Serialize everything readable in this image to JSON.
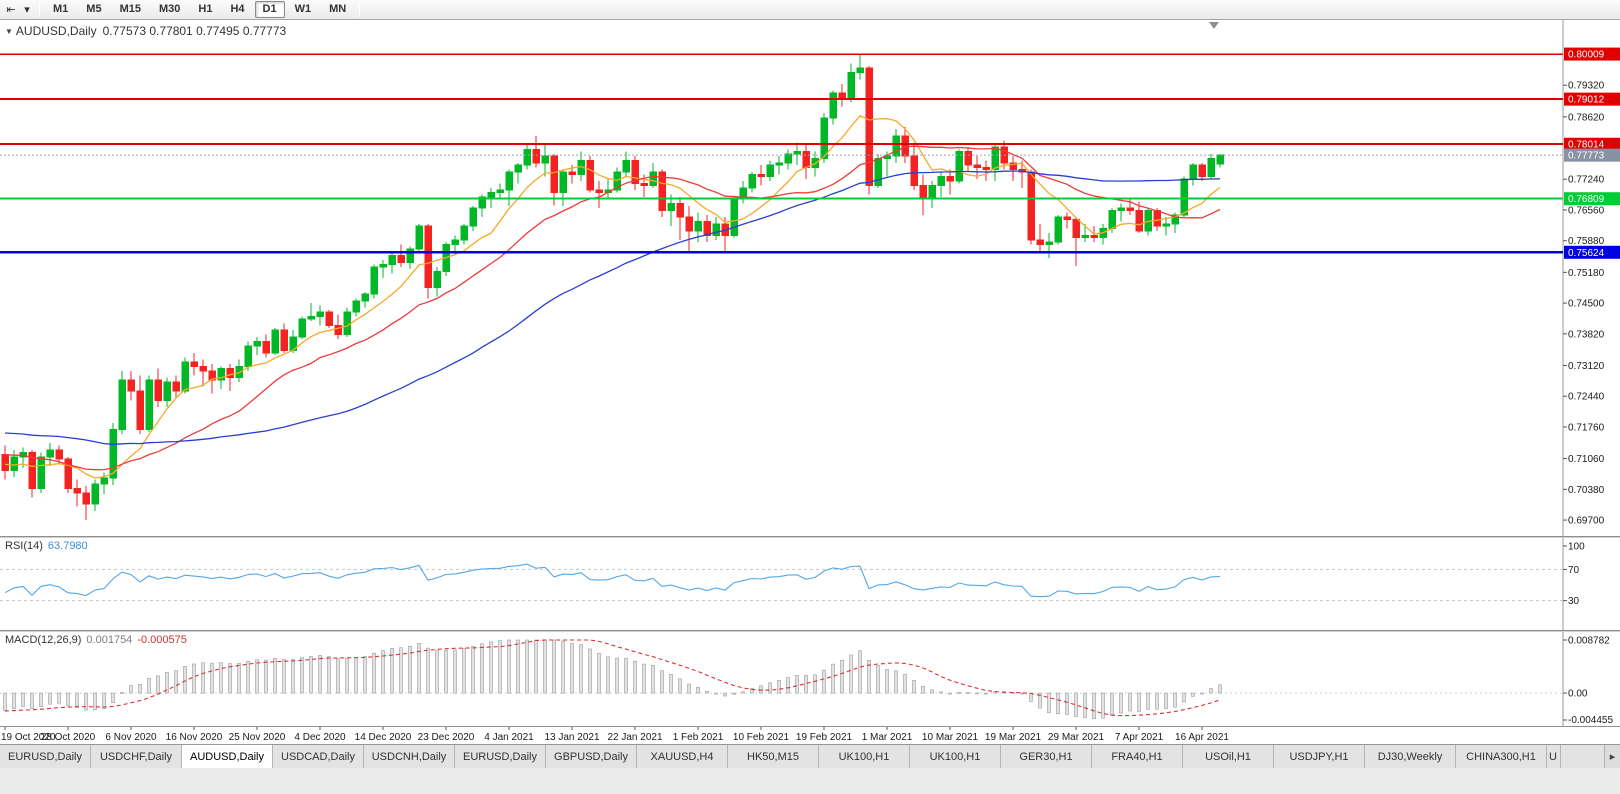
{
  "toolbar": {
    "timeframes": [
      "M1",
      "M5",
      "M15",
      "M30",
      "H1",
      "H4",
      "D1",
      "W1",
      "MN"
    ],
    "active_timeframe": "D1"
  },
  "icons": {
    "scroll_left": "⇤",
    "caret": "▾",
    "collapse_triangle": "▼",
    "tab_scroll_right": "▸"
  },
  "colors": {
    "up": "#00b826",
    "down": "#f52222",
    "rsi": "#52a8e8",
    "macd_signal": "#e03030",
    "macd_hist_fill": "#e2e2e2",
    "macd_hist_stroke": "#9c9c9c",
    "current_price_box": "#8792a5",
    "current_price_line": "#9aa2b8",
    "scale_text": "#1a1a1a"
  },
  "chart_data": {
    "type": "candlestick",
    "title_symbol": "AUDUSD,Daily",
    "open_text": "0.77573",
    "high_text": "0.77801",
    "low_text": "0.77495",
    "close_text": "0.77773",
    "current_price": 0.77773,
    "ylim": [
      0.6948,
      0.8063
    ],
    "price_ticks": [
      "0.79320",
      "0.78620",
      "0.77240",
      "0.76560",
      "0.75880",
      "0.75180",
      "0.74500",
      "0.73820",
      "0.73120",
      "0.72440",
      "0.71760",
      "0.71060",
      "0.70380",
      "0.69700"
    ],
    "levels": [
      {
        "price": 0.80009,
        "label": "0.80009",
        "color": "#e00000",
        "width": 1.4
      },
      {
        "price": 0.79012,
        "label": "0.79012",
        "color": "#e00000",
        "width": 2
      },
      {
        "price": 0.78014,
        "label": "0.78014",
        "color": "#e00000",
        "width": 2
      },
      {
        "price": 0.76809,
        "label": "0.76809",
        "color": "#00cc33",
        "width": 2
      },
      {
        "price": 0.75624,
        "label": "0.75624",
        "color": "#0000e6",
        "width": 2.4
      }
    ],
    "date_labels": [
      "19 Oct 2020",
      "28 Oct 2020",
      "6 Nov 2020",
      "16 Nov 2020",
      "25 Nov 2020",
      "4 Dec 2020",
      "14 Dec 2020",
      "23 Dec 2020",
      "4 Jan 2021",
      "13 Jan 2021",
      "22 Jan 2021",
      "1 Feb 2021",
      "10 Feb 2021",
      "19 Feb 2021",
      "1 Mar 2021",
      "10 Mar 2021",
      "19 Mar 2021",
      "29 Mar 2021",
      "7 Apr 2021",
      "16 Apr 2021"
    ],
    "label_every": 7,
    "moving_averages": [
      {
        "period": 8,
        "color": "#f7a928"
      },
      {
        "period": 20,
        "color": "#ef3a3a"
      },
      {
        "period": 50,
        "color": "#2840d0"
      }
    ],
    "rsi_label": "RSI(14)",
    "rsi_value": "63.7980",
    "rsi_period": 14,
    "rsi_scale": [
      "100",
      "70",
      "30"
    ],
    "macd_label": "MACD(12,26,9)",
    "macd_value": "0.001754",
    "macd_signal_value": "-0.000575",
    "macd_fast": 12,
    "macd_slow": 26,
    "macd_signal_period": 9,
    "macd_scale_max": "0.008782",
    "macd_scale_zero": "0.00",
    "macd_scale_min": "-0.004455",
    "seed_closes": [
      0.725,
      0.726,
      0.7245,
      0.723,
      0.721,
      0.7195,
      0.718,
      0.72,
      0.7215,
      0.723,
      0.724,
      0.7225,
      0.72,
      0.7175,
      0.7155,
      0.717,
      0.7185,
      0.72,
      0.723,
      0.721,
      0.7165,
      0.714,
      0.712,
      0.7145,
      0.716,
      0.7175,
      0.719,
      0.7165,
      0.7135,
      0.71,
      0.7075,
      0.706,
      0.709,
      0.712,
      0.7105,
      0.708,
      0.7095,
      0.711,
      0.7085,
      0.707
    ],
    "ohlc": [
      [
        0.7115,
        0.7135,
        0.706,
        0.708
      ],
      [
        0.708,
        0.7125,
        0.7065,
        0.711
      ],
      [
        0.711,
        0.713,
        0.7085,
        0.712
      ],
      [
        0.712,
        0.7125,
        0.702,
        0.704
      ],
      [
        0.704,
        0.712,
        0.703,
        0.711
      ],
      [
        0.711,
        0.714,
        0.709,
        0.7125
      ],
      [
        0.7125,
        0.7135,
        0.7095,
        0.7105
      ],
      [
        0.7105,
        0.711,
        0.703,
        0.704
      ],
      [
        0.704,
        0.706,
        0.7,
        0.703
      ],
      [
        0.703,
        0.7045,
        0.697,
        0.7005
      ],
      [
        0.7005,
        0.706,
        0.699,
        0.705
      ],
      [
        0.705,
        0.7075,
        0.7028,
        0.7063
      ],
      [
        0.7063,
        0.7185,
        0.7048,
        0.717
      ],
      [
        0.717,
        0.73,
        0.716,
        0.728
      ],
      [
        0.728,
        0.73,
        0.7235,
        0.7255
      ],
      [
        0.7255,
        0.729,
        0.716,
        0.717
      ],
      [
        0.717,
        0.729,
        0.7165,
        0.728
      ],
      [
        0.728,
        0.7305,
        0.722,
        0.7235
      ],
      [
        0.7235,
        0.7285,
        0.722,
        0.7275
      ],
      [
        0.7275,
        0.729,
        0.724,
        0.7255
      ],
      [
        0.7255,
        0.733,
        0.725,
        0.732
      ],
      [
        0.732,
        0.734,
        0.729,
        0.731
      ],
      [
        0.731,
        0.7325,
        0.7265,
        0.73
      ],
      [
        0.73,
        0.7315,
        0.725,
        0.728
      ],
      [
        0.728,
        0.731,
        0.726,
        0.7305
      ],
      [
        0.7305,
        0.7315,
        0.7255,
        0.7285
      ],
      [
        0.7285,
        0.7325,
        0.7275,
        0.731
      ],
      [
        0.731,
        0.7365,
        0.73,
        0.7355
      ],
      [
        0.7355,
        0.7375,
        0.7335,
        0.7365
      ],
      [
        0.7365,
        0.738,
        0.733,
        0.734
      ],
      [
        0.734,
        0.7395,
        0.7335,
        0.739
      ],
      [
        0.739,
        0.7405,
        0.734,
        0.7345
      ],
      [
        0.7345,
        0.739,
        0.734,
        0.7375
      ],
      [
        0.7375,
        0.742,
        0.737,
        0.7415
      ],
      [
        0.7415,
        0.745,
        0.741,
        0.742
      ],
      [
        0.742,
        0.7445,
        0.74,
        0.743
      ],
      [
        0.743,
        0.7435,
        0.7395,
        0.74
      ],
      [
        0.74,
        0.7425,
        0.737,
        0.738
      ],
      [
        0.738,
        0.744,
        0.7375,
        0.743
      ],
      [
        0.743,
        0.746,
        0.742,
        0.7455
      ],
      [
        0.7455,
        0.7475,
        0.744,
        0.747
      ],
      [
        0.747,
        0.7535,
        0.746,
        0.753
      ],
      [
        0.753,
        0.7545,
        0.7505,
        0.7535
      ],
      [
        0.7535,
        0.756,
        0.7515,
        0.7555
      ],
      [
        0.7555,
        0.758,
        0.753,
        0.754
      ],
      [
        0.754,
        0.7575,
        0.7525,
        0.757
      ],
      [
        0.757,
        0.7625,
        0.756,
        0.762
      ],
      [
        0.762,
        0.7625,
        0.746,
        0.7485
      ],
      [
        0.7485,
        0.753,
        0.7465,
        0.752
      ],
      [
        0.752,
        0.7585,
        0.751,
        0.758
      ],
      [
        0.758,
        0.76,
        0.7555,
        0.759
      ],
      [
        0.759,
        0.7625,
        0.758,
        0.762
      ],
      [
        0.762,
        0.7665,
        0.761,
        0.766
      ],
      [
        0.766,
        0.769,
        0.764,
        0.7685
      ],
      [
        0.7685,
        0.7705,
        0.766,
        0.7695
      ],
      [
        0.7695,
        0.7715,
        0.768,
        0.77
      ],
      [
        0.77,
        0.7745,
        0.7665,
        0.774
      ],
      [
        0.774,
        0.776,
        0.7715,
        0.7755
      ],
      [
        0.7755,
        0.78,
        0.7745,
        0.779
      ],
      [
        0.779,
        0.782,
        0.775,
        0.776
      ],
      [
        0.776,
        0.78,
        0.773,
        0.7775
      ],
      [
        0.7775,
        0.778,
        0.7666,
        0.7695
      ],
      [
        0.7695,
        0.7745,
        0.7665,
        0.774
      ],
      [
        0.774,
        0.7755,
        0.7715,
        0.7735
      ],
      [
        0.7735,
        0.7785,
        0.772,
        0.7765
      ],
      [
        0.7765,
        0.7775,
        0.7695,
        0.77
      ],
      [
        0.77,
        0.772,
        0.766,
        0.7695
      ],
      [
        0.7695,
        0.7725,
        0.768,
        0.77
      ],
      [
        0.77,
        0.775,
        0.7695,
        0.774
      ],
      [
        0.774,
        0.7785,
        0.773,
        0.7765
      ],
      [
        0.7765,
        0.7775,
        0.77,
        0.7715
      ],
      [
        0.7715,
        0.7735,
        0.7685,
        0.771
      ],
      [
        0.771,
        0.776,
        0.7705,
        0.774
      ],
      [
        0.774,
        0.7745,
        0.764,
        0.7655
      ],
      [
        0.7655,
        0.769,
        0.762,
        0.767
      ],
      [
        0.767,
        0.7685,
        0.759,
        0.764
      ],
      [
        0.764,
        0.7665,
        0.7565,
        0.761
      ],
      [
        0.761,
        0.765,
        0.7585,
        0.763
      ],
      [
        0.763,
        0.7645,
        0.7585,
        0.76
      ],
      [
        0.76,
        0.764,
        0.759,
        0.7625
      ],
      [
        0.7625,
        0.764,
        0.756,
        0.76
      ],
      [
        0.76,
        0.7685,
        0.7595,
        0.768
      ],
      [
        0.768,
        0.772,
        0.767,
        0.7705
      ],
      [
        0.7705,
        0.774,
        0.7695,
        0.7735
      ],
      [
        0.7735,
        0.7755,
        0.771,
        0.773
      ],
      [
        0.773,
        0.7765,
        0.772,
        0.7755
      ],
      [
        0.7755,
        0.7775,
        0.7735,
        0.776
      ],
      [
        0.776,
        0.779,
        0.7745,
        0.778
      ],
      [
        0.778,
        0.7805,
        0.7755,
        0.7785
      ],
      [
        0.7785,
        0.78,
        0.7725,
        0.775
      ],
      [
        0.775,
        0.7785,
        0.773,
        0.777
      ],
      [
        0.777,
        0.787,
        0.776,
        0.786
      ],
      [
        0.786,
        0.792,
        0.7845,
        0.7915
      ],
      [
        0.7915,
        0.7935,
        0.7885,
        0.7905
      ],
      [
        0.7905,
        0.798,
        0.7895,
        0.796
      ],
      [
        0.796,
        0.8001,
        0.7945,
        0.797
      ],
      [
        0.797,
        0.7975,
        0.769,
        0.771
      ],
      [
        0.771,
        0.778,
        0.7705,
        0.777
      ],
      [
        0.777,
        0.7785,
        0.773,
        0.7775
      ],
      [
        0.7775,
        0.7835,
        0.776,
        0.782
      ],
      [
        0.782,
        0.784,
        0.776,
        0.7775
      ],
      [
        0.7775,
        0.7805,
        0.77,
        0.771
      ],
      [
        0.771,
        0.7735,
        0.7645,
        0.7685
      ],
      [
        0.7685,
        0.772,
        0.766,
        0.771
      ],
      [
        0.771,
        0.774,
        0.7685,
        0.773
      ],
      [
        0.773,
        0.7745,
        0.769,
        0.772
      ],
      [
        0.772,
        0.779,
        0.7715,
        0.7785
      ],
      [
        0.7785,
        0.7795,
        0.774,
        0.7755
      ],
      [
        0.7755,
        0.7775,
        0.7725,
        0.775
      ],
      [
        0.775,
        0.7765,
        0.772,
        0.7745
      ],
      [
        0.7745,
        0.78,
        0.772,
        0.7795
      ],
      [
        0.7795,
        0.781,
        0.7745,
        0.776
      ],
      [
        0.776,
        0.7775,
        0.772,
        0.7745
      ],
      [
        0.7745,
        0.7765,
        0.7705,
        0.774
      ],
      [
        0.774,
        0.7745,
        0.758,
        0.759
      ],
      [
        0.759,
        0.7625,
        0.756,
        0.758
      ],
      [
        0.758,
        0.7605,
        0.755,
        0.7585
      ],
      [
        0.7585,
        0.7645,
        0.758,
        0.764
      ],
      [
        0.764,
        0.765,
        0.7615,
        0.7635
      ],
      [
        0.7635,
        0.764,
        0.7532,
        0.7595
      ],
      [
        0.7595,
        0.7625,
        0.7585,
        0.76
      ],
      [
        0.76,
        0.762,
        0.7585,
        0.7595
      ],
      [
        0.7595,
        0.7625,
        0.758,
        0.7615
      ],
      [
        0.7615,
        0.766,
        0.7605,
        0.7655
      ],
      [
        0.7655,
        0.767,
        0.763,
        0.766
      ],
      [
        0.766,
        0.768,
        0.7645,
        0.7655
      ],
      [
        0.7655,
        0.7675,
        0.7605,
        0.761
      ],
      [
        0.761,
        0.766,
        0.76,
        0.7655
      ],
      [
        0.7655,
        0.766,
        0.761,
        0.762
      ],
      [
        0.762,
        0.764,
        0.76,
        0.7625
      ],
      [
        0.7625,
        0.765,
        0.7605,
        0.7645
      ],
      [
        0.7645,
        0.773,
        0.764,
        0.7725
      ],
      [
        0.7725,
        0.776,
        0.771,
        0.7755
      ],
      [
        0.7755,
        0.776,
        0.772,
        0.773
      ],
      [
        0.773,
        0.778,
        0.7725,
        0.777
      ],
      [
        0.77573,
        0.77801,
        0.77495,
        0.77773
      ]
    ]
  },
  "tabs": {
    "items": [
      "EURUSD,Daily",
      "USDCHF,Daily",
      "AUDUSD,Daily",
      "USDCAD,Daily",
      "USDCNH,Daily",
      "EURUSD,Daily",
      "GBPUSD,Daily",
      "XAUUSD,H4",
      "HK50,M15",
      "UK100,H1",
      "UK100,H1",
      "GER30,H1",
      "FRA40,H1",
      "USOil,H1",
      "USDJPY,H1",
      "DJ30,Weekly",
      "CHINA300,H1"
    ],
    "active_index": 2,
    "overflow_label": "U"
  }
}
